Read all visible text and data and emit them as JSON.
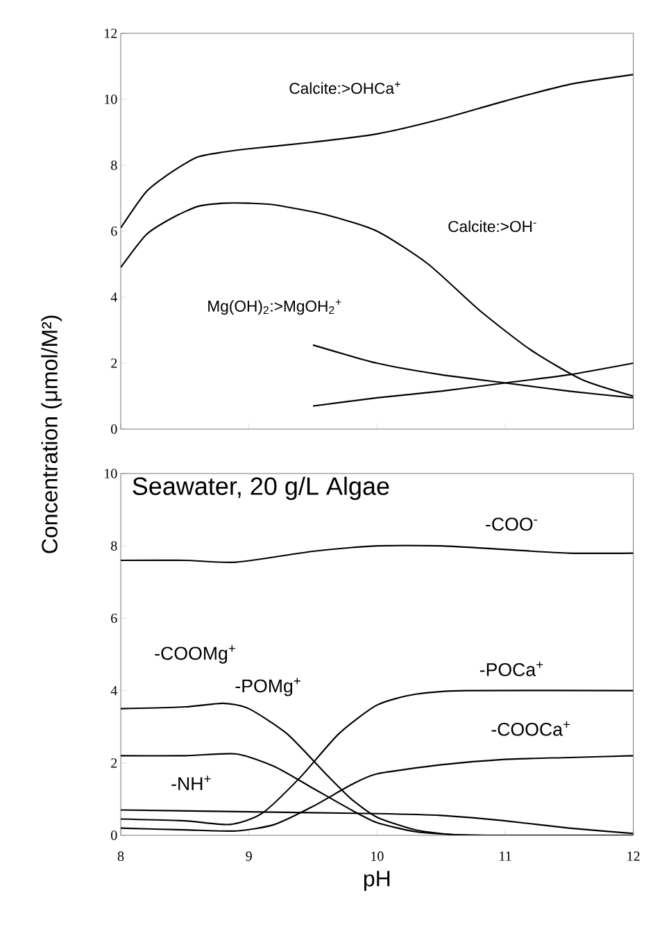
{
  "chart_data": [
    {
      "type": "line",
      "ylabel": "Concentration (μmol/M²)",
      "xlim": [
        8,
        12
      ],
      "ylim": [
        0,
        12
      ],
      "xticks": [
        8,
        9,
        10,
        11,
        12
      ],
      "yticks": [
        0,
        2,
        4,
        6,
        8,
        10,
        12
      ],
      "tick_labels": "y",
      "series": [
        {
          "name": "Calcite:>OHCa$^{+}$",
          "color": "#000000",
          "x": [
            8.0,
            8.2,
            8.4,
            8.6,
            8.8,
            9.0,
            9.5,
            10.0,
            10.5,
            11.0,
            11.5,
            12.0
          ],
          "values": [
            6.1,
            7.2,
            7.8,
            8.25,
            8.4,
            8.5,
            8.7,
            8.95,
            9.4,
            9.95,
            10.45,
            10.75
          ]
        },
        {
          "name": "Calcite:>OH$^{-}$",
          "color": "#000000",
          "x": [
            8.0,
            8.2,
            8.4,
            8.6,
            8.8,
            9.0,
            9.2,
            9.6,
            10.0,
            10.4,
            10.8,
            11.2,
            11.6,
            12.0
          ],
          "values": [
            4.9,
            5.9,
            6.4,
            6.75,
            6.85,
            6.85,
            6.8,
            6.5,
            6.0,
            5.0,
            3.6,
            2.4,
            1.5,
            1.0
          ]
        },
        {
          "name": "Mg(OH)$_{2}$:>MgOH$_{2}$$^{+}$",
          "color": "#000000",
          "x": [
            9.5,
            10.0,
            10.5,
            11.0,
            11.5,
            12.0
          ],
          "values": [
            2.55,
            2.0,
            1.65,
            1.4,
            1.15,
            0.95
          ]
        },
        {
          "color": "#000000",
          "x": [
            9.5,
            10.0,
            10.5,
            11.0,
            11.5,
            12.0
          ],
          "values": [
            0.7,
            0.95,
            1.15,
            1.4,
            1.65,
            2.0
          ]
        }
      ]
    },
    {
      "type": "line",
      "title": "Seawater, 20 g/L Algae",
      "annotations": [
        "-COOMg$^{+}$"
      ],
      "xlabel": "pH",
      "xlim": [
        8,
        12
      ],
      "ylim": [
        0,
        10
      ],
      "xticks": [
        8,
        9,
        10,
        11,
        12
      ],
      "yticks": [
        0,
        2,
        4,
        6,
        8,
        10
      ],
      "series": [
        {
          "name": "-COO$^{-}$",
          "color": "#000000",
          "x": [
            8.0,
            8.5,
            8.9,
            9.5,
            10.0,
            10.5,
            11.0,
            11.5,
            12.0
          ],
          "values": [
            7.6,
            7.6,
            7.55,
            7.85,
            8.0,
            8.0,
            7.9,
            7.8,
            7.8
          ]
        },
        {
          "name": "-POMg$^{+}$",
          "color": "#000000",
          "x": [
            8.0,
            8.5,
            8.8,
            9.0,
            9.3,
            9.6,
            9.8,
            10.0,
            10.3,
            10.6,
            11.0,
            12.0
          ],
          "values": [
            3.5,
            3.55,
            3.65,
            3.5,
            2.8,
            1.7,
            1.0,
            0.5,
            0.15,
            0.02,
            0,
            0
          ]
        },
        {
          "color": "#000000",
          "x": [
            8.0,
            8.5,
            8.9,
            9.2,
            9.5,
            9.8,
            10.0,
            10.3,
            10.6,
            11.0,
            12.0
          ],
          "values": [
            2.2,
            2.2,
            2.25,
            1.9,
            1.3,
            0.7,
            0.35,
            0.1,
            0.02,
            0,
            0
          ]
        },
        {
          "name": "-NH$^{+}$",
          "color": "#000000",
          "x": [
            8.0,
            9.0,
            10.0,
            10.5,
            11.0,
            11.5,
            12.0
          ],
          "values": [
            0.7,
            0.65,
            0.6,
            0.55,
            0.4,
            0.2,
            0.05
          ]
        },
        {
          "name": "-POCa$^{+}$",
          "color": "#000000",
          "x": [
            8.0,
            8.5,
            8.85,
            9.1,
            9.4,
            9.7,
            10.0,
            10.3,
            10.7,
            12.0
          ],
          "values": [
            0.45,
            0.4,
            0.3,
            0.6,
            1.6,
            2.8,
            3.6,
            3.9,
            4.0,
            4.0
          ]
        },
        {
          "name": "-COOCa$^{+}$",
          "color": "#000000",
          "x": [
            8.0,
            8.5,
            8.9,
            9.2,
            9.5,
            9.8,
            10.0,
            10.5,
            11.0,
            11.5,
            12.0
          ],
          "values": [
            0.2,
            0.15,
            0.12,
            0.3,
            0.8,
            1.4,
            1.7,
            1.95,
            2.1,
            2.15,
            2.2
          ]
        }
      ]
    }
  ]
}
